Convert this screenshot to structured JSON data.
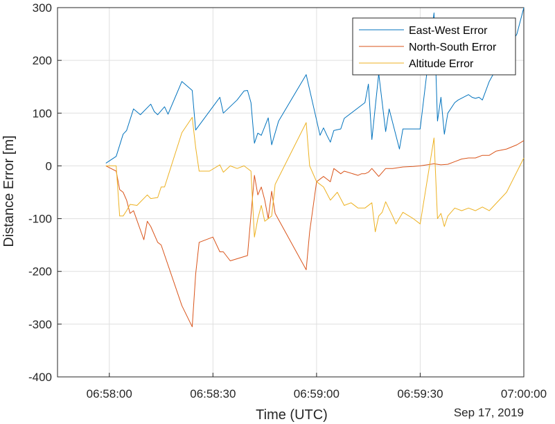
{
  "chart_data": {
    "type": "line",
    "xlabel": "Time (UTC)",
    "ylabel": "Distance Error [m]",
    "date_label": "Sep 17, 2019",
    "grid": true,
    "legend_position": "top-right",
    "x_ticks": [
      "06:58:00",
      "06:58:30",
      "06:59:00",
      "06:59:30",
      "07:00:00"
    ],
    "y_ticks": [
      300,
      200,
      100,
      0,
      -100,
      -200,
      -300,
      -400
    ],
    "xlim": [
      "06:57:45",
      "07:00:00"
    ],
    "ylim": [
      -400,
      300
    ],
    "series": [
      {
        "name": "East-West Error",
        "color": "#0072BD",
        "x": [
          "06:57:59",
          "06:58:02",
          "06:58:04",
          "06:58:05",
          "06:58:07",
          "06:58:09",
          "06:58:12",
          "06:58:13",
          "06:58:14",
          "06:58:16",
          "06:58:17",
          "06:58:21",
          "06:58:24",
          "06:58:25",
          "06:58:32",
          "06:58:33",
          "06:58:37",
          "06:58:39",
          "06:58:40",
          "06:58:41",
          "06:58:42",
          "06:58:43",
          "06:58:44",
          "06:58:46",
          "06:58:47",
          "06:58:49",
          "06:58:57",
          "06:59:01",
          "06:59:02",
          "06:59:03",
          "06:59:04",
          "06:59:05",
          "06:59:07",
          "06:59:08",
          "06:59:14",
          "06:59:15",
          "06:59:16",
          "06:59:18",
          "06:59:20",
          "06:59:21",
          "06:59:24",
          "06:59:25",
          "06:59:30",
          "06:59:34",
          "06:59:35",
          "06:59:36",
          "06:59:37",
          "06:59:38",
          "06:59:40",
          "06:59:41",
          "06:59:44",
          "06:59:45",
          "06:59:46",
          "06:59:47",
          "06:59:48",
          "06:59:50",
          "06:59:51",
          "06:59:58",
          "07:00:00"
        ],
        "values": [
          5,
          18,
          60,
          67,
          108,
          97,
          117,
          103,
          97,
          112,
          98,
          160,
          143,
          68,
          130,
          100,
          125,
          142,
          143,
          120,
          43,
          62,
          58,
          91,
          40,
          85,
          173,
          58,
          72,
          58,
          45,
          67,
          70,
          90,
          120,
          155,
          50,
          175,
          65,
          108,
          32,
          70,
          70,
          290,
          85,
          130,
          60,
          100,
          120,
          125,
          135,
          130,
          128,
          130,
          125,
          160,
          172,
          250,
          300
        ]
      },
      {
        "name": "North-South Error",
        "color": "#D95319",
        "x": [
          "06:57:59",
          "06:58:02",
          "06:58:03",
          "06:58:04",
          "06:58:05",
          "06:58:06",
          "06:58:07",
          "06:58:10",
          "06:58:11",
          "06:58:12",
          "06:58:14",
          "06:58:15",
          "06:58:21",
          "06:58:24",
          "06:58:25",
          "06:58:26",
          "06:58:30",
          "06:58:32",
          "06:58:33",
          "06:58:35",
          "06:58:40",
          "06:58:42",
          "06:58:43",
          "06:58:44",
          "06:58:45",
          "06:58:46",
          "06:58:47",
          "06:58:48",
          "06:58:57",
          "06:58:58",
          "06:59:00",
          "06:59:02",
          "06:59:03",
          "06:59:04",
          "06:59:05",
          "06:59:07",
          "06:59:08",
          "06:59:12",
          "06:59:13",
          "06:59:14",
          "06:59:15",
          "06:59:16",
          "06:59:18",
          "06:59:20",
          "06:59:22",
          "06:59:25",
          "06:59:28",
          "06:59:30",
          "06:59:32",
          "06:59:34",
          "06:59:36",
          "06:59:38",
          "06:59:40",
          "06:59:42",
          "06:59:44",
          "06:59:46",
          "06:59:48",
          "06:59:50",
          "06:59:52",
          "06:59:55",
          "06:59:58",
          "07:00:00"
        ],
        "values": [
          0,
          -10,
          -45,
          -50,
          -65,
          -90,
          -85,
          -140,
          -105,
          -115,
          -145,
          -150,
          -265,
          -305,
          -205,
          -145,
          -135,
          -163,
          -163,
          -180,
          -170,
          -18,
          -55,
          -40,
          -65,
          -100,
          -48,
          -90,
          -197,
          -125,
          -30,
          -20,
          -25,
          -30,
          -5,
          -15,
          -10,
          -18,
          -15,
          -15,
          -12,
          -5,
          -20,
          -5,
          -5,
          -2,
          -1,
          0,
          2,
          4,
          2,
          3,
          8,
          13,
          15,
          15,
          20,
          20,
          28,
          32,
          40,
          48
        ]
      },
      {
        "name": "Altitude Error",
        "color": "#EDB120",
        "x": [
          "06:57:59",
          "06:58:02",
          "06:58:03",
          "06:58:04",
          "06:58:05",
          "06:58:06",
          "06:58:08",
          "06:58:11",
          "06:58:12",
          "06:58:14",
          "06:58:15",
          "06:58:16",
          "06:58:21",
          "06:58:24",
          "06:58:25",
          "06:58:26",
          "06:58:29",
          "06:58:32",
          "06:58:33",
          "06:58:35",
          "06:58:37",
          "06:58:39",
          "06:58:41",
          "06:58:42",
          "06:58:43",
          "06:58:44",
          "06:58:45",
          "06:58:47",
          "06:58:48",
          "06:58:57",
          "06:58:58",
          "06:59:00",
          "06:59:02",
          "06:59:04",
          "06:59:06",
          "06:59:08",
          "06:59:10",
          "06:59:12",
          "06:59:14",
          "06:59:16",
          "06:59:17",
          "06:59:18",
          "06:59:19",
          "06:59:20",
          "06:59:22",
          "06:59:23",
          "06:59:25",
          "06:59:28",
          "06:59:30",
          "06:59:34",
          "06:59:35",
          "06:59:36",
          "06:59:37",
          "06:59:38",
          "06:59:40",
          "06:59:42",
          "06:59:44",
          "06:59:46",
          "06:59:48",
          "06:59:50",
          "06:59:55",
          "07:00:00"
        ],
        "values": [
          0,
          0,
          -95,
          -95,
          -85,
          -73,
          -75,
          -55,
          -62,
          -60,
          -40,
          -40,
          63,
          92,
          35,
          -10,
          -10,
          2,
          -12,
          0,
          -5,
          0,
          -10,
          -135,
          -100,
          -75,
          -105,
          -95,
          -35,
          82,
          0,
          -30,
          -40,
          -65,
          -50,
          -75,
          -70,
          -80,
          -80,
          -70,
          -125,
          -95,
          -88,
          -68,
          -95,
          -110,
          -88,
          -100,
          -110,
          53,
          -100,
          -90,
          -115,
          -95,
          -80,
          -85,
          -80,
          -85,
          -78,
          -85,
          -50,
          15
        ]
      }
    ]
  }
}
